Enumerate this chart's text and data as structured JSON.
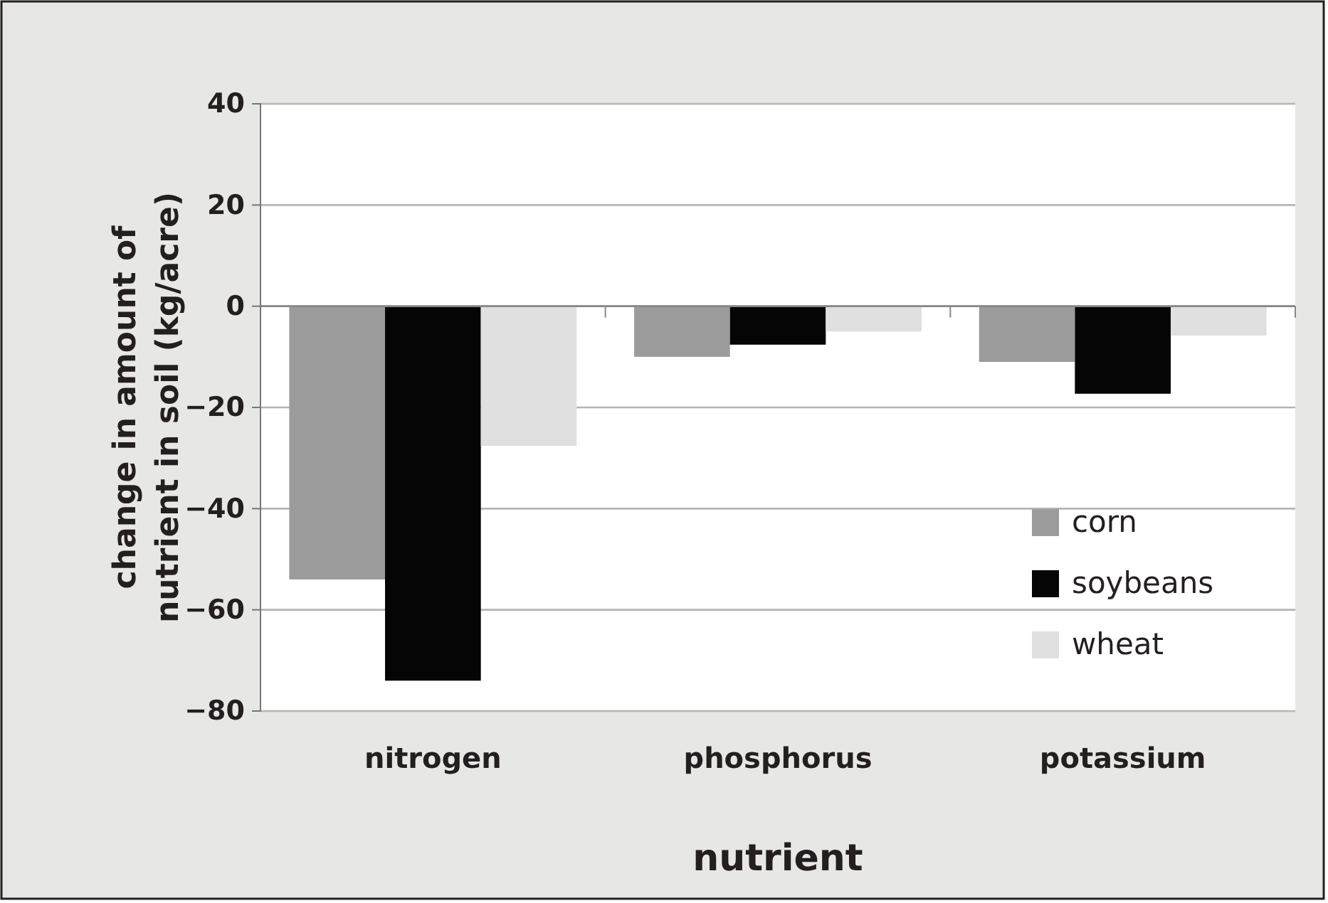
{
  "chart_data": {
    "type": "bar",
    "xlabel": "nutrient",
    "ylabel": "change in amount of nutrient in soil (kg/acre)",
    "categories": [
      "nitrogen",
      "phosphorus",
      "potassium"
    ],
    "series": [
      {
        "name": "corn",
        "color": "#9b9b9b",
        "values": [
          -54,
          -10,
          -11
        ]
      },
      {
        "name": "soybeans",
        "color": "#050505",
        "values": [
          -74,
          -7.6,
          -17.3
        ]
      },
      {
        "name": "wheat",
        "color": "#e0e0e0",
        "values": [
          -27.6,
          -5,
          -5.8
        ]
      }
    ],
    "ylim": [
      -80,
      40
    ],
    "yticks": [
      -80,
      -60,
      -40,
      -20,
      0,
      20,
      40
    ],
    "grid": "y",
    "legend": "bottom right"
  }
}
